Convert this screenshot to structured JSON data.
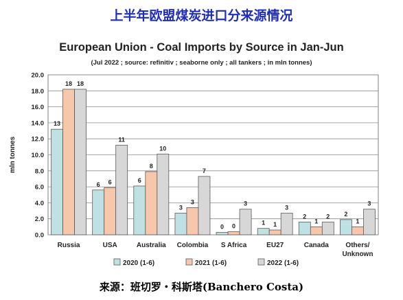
{
  "header": {
    "title": "上半年欧盟煤炭进口分来源情况"
  },
  "chart_data": {
    "type": "bar",
    "title": "European Union - Coal Imports by Source in Jan-Jun",
    "subtitle": "(Jul 2022 ; source: refinitiv ; seaborne only ; all tankers ; in mln tonnes)",
    "ylabel": "mln tonnes",
    "ylim": [
      0,
      20
    ],
    "yticks": [
      "0.0",
      "2.0",
      "4.0",
      "6.0",
      "8.0",
      "10.0",
      "12.0",
      "14.0",
      "16.0",
      "18.0",
      "20.0"
    ],
    "grid": true,
    "legend_position": "bottom",
    "categories": [
      "Russia",
      "USA",
      "Australia",
      "Colombia",
      "S Africa",
      "EU27",
      "Canada",
      "Others/ Unknown"
    ],
    "series": [
      {
        "name": "2020 (1-6)",
        "color": "#bfe1e4",
        "values": [
          13.2,
          5.6,
          6.1,
          2.7,
          0.3,
          0.8,
          1.6,
          1.9
        ],
        "labels": [
          "13",
          "6",
          "6",
          "3",
          "0",
          "1",
          "2",
          "2"
        ]
      },
      {
        "name": "2021 (1-6)",
        "color": "#f6c7ab",
        "values": [
          18.2,
          5.9,
          7.9,
          3.4,
          0.4,
          0.6,
          1.0,
          1.0
        ],
        "labels": [
          "18",
          "6",
          "8",
          "3",
          "0",
          "1",
          "1",
          "1"
        ]
      },
      {
        "name": "2022 (1-6)",
        "color": "#d7d7d7",
        "values": [
          18.2,
          11.2,
          10.1,
          7.3,
          3.2,
          2.7,
          1.6,
          3.2
        ],
        "labels": [
          "18",
          "11",
          "10",
          "7",
          "3",
          "3",
          "2",
          "3"
        ]
      }
    ]
  },
  "footer": {
    "source": "来源：班切罗・科斯塔(Banchero Costa)"
  }
}
